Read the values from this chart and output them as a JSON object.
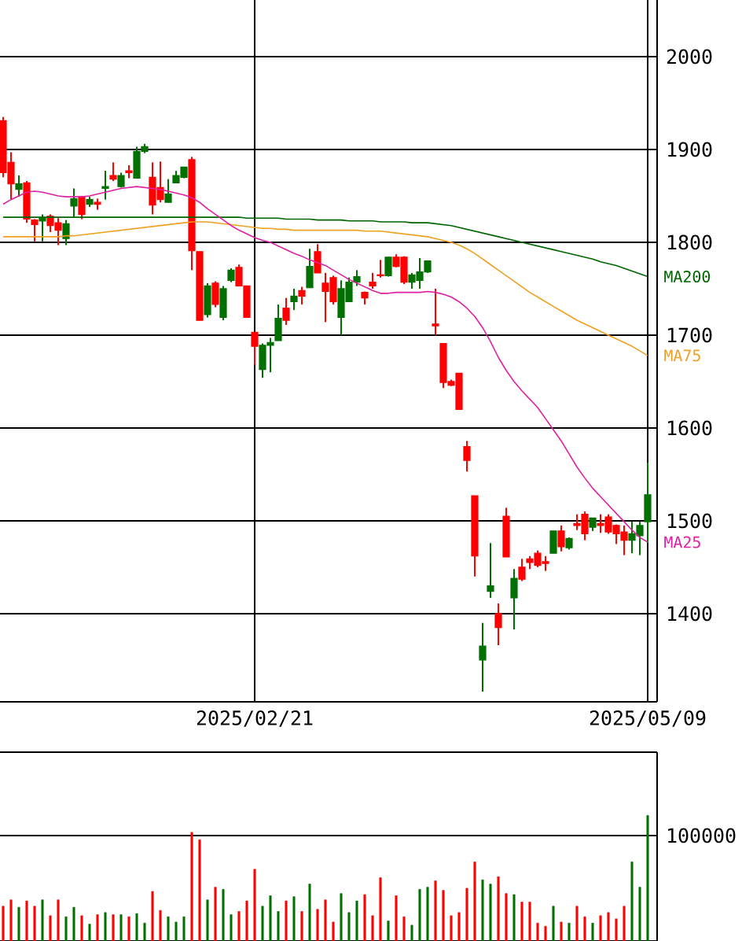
{
  "chart_data": [
    {
      "type": "candlestick",
      "categories": [
        null,
        null,
        null,
        null,
        null,
        null,
        null,
        null,
        null,
        null,
        null,
        null,
        null,
        null,
        null,
        null,
        null,
        null,
        null,
        null,
        null,
        null,
        null,
        null,
        null,
        null,
        null,
        null,
        null,
        null,
        null,
        null,
        "2025/02/21",
        null,
        null,
        null,
        null,
        null,
        null,
        null,
        null,
        null,
        null,
        null,
        null,
        null,
        null,
        null,
        null,
        null,
        null,
        null,
        null,
        null,
        null,
        null,
        null,
        null,
        null,
        null,
        null,
        null,
        null,
        null,
        null,
        null,
        null,
        null,
        null,
        null,
        null,
        null,
        null,
        null,
        null,
        null,
        null,
        null,
        null,
        null,
        null,
        null,
        "2025/05/09"
      ],
      "ohlc": [
        [
          1931,
          1935,
          1870,
          1875
        ],
        [
          1886,
          1897,
          1846,
          1863
        ],
        [
          1857,
          1872,
          1849,
          1863
        ],
        [
          1864,
          1866,
          1821,
          1825
        ],
        [
          1824,
          1825,
          1801,
          1819
        ],
        [
          1823,
          1830,
          1801,
          1826
        ],
        [
          1828,
          1830,
          1811,
          1818
        ],
        [
          1821,
          1826,
          1797,
          1813
        ],
        [
          1804,
          1824,
          1797,
          1820
        ],
        [
          1839,
          1858,
          1827,
          1847
        ],
        [
          1849,
          1850,
          1825,
          1830
        ],
        [
          1841,
          1849,
          1838,
          1846
        ],
        [
          1843,
          1847,
          1835,
          1841
        ],
        [
          1858,
          1877,
          1846,
          1860
        ],
        [
          1872,
          1886,
          1866,
          1868
        ],
        [
          1860,
          1875,
          1859,
          1872
        ],
        [
          1877,
          1883,
          1869,
          1875
        ],
        [
          1869,
          1903,
          1869,
          1898
        ],
        [
          1898,
          1906,
          1896,
          1903
        ],
        [
          1870,
          1886,
          1830,
          1840
        ],
        [
          1859,
          1887,
          1843,
          1846
        ],
        [
          1843,
          1868,
          1843,
          1852
        ],
        [
          1864,
          1877,
          1864,
          1872
        ],
        [
          1870,
          1881,
          1869,
          1881
        ],
        [
          1889,
          1892,
          1770,
          1791
        ],
        [
          1790,
          1790,
          1716,
          1716
        ],
        [
          1722,
          1756,
          1719,
          1753
        ],
        [
          1756,
          1758,
          1730,
          1733
        ],
        [
          1719,
          1753,
          1716,
          1750
        ],
        [
          1759,
          1772,
          1757,
          1770
        ],
        [
          1773,
          1776,
          1753,
          1753
        ],
        [
          1753,
          1753,
          1719,
          1719
        ],
        [
          1703,
          1703,
          1668,
          1688
        ],
        [
          1663,
          1691,
          1654,
          1689
        ],
        [
          1689,
          1697,
          1660,
          1692
        ],
        [
          1694,
          1733,
          1694,
          1718
        ],
        [
          1729,
          1740,
          1711,
          1716
        ],
        [
          1736,
          1750,
          1727,
          1742
        ],
        [
          1748,
          1752,
          1733,
          1742
        ],
        [
          1751,
          1793,
          1751,
          1774
        ],
        [
          1790,
          1798,
          1767,
          1767
        ],
        [
          1756,
          1767,
          1714,
          1747
        ],
        [
          1762,
          1764,
          1733,
          1736
        ],
        [
          1719,
          1759,
          1700,
          1750
        ],
        [
          1736,
          1762,
          1736,
          1757
        ],
        [
          1757,
          1770,
          1753,
          1763
        ],
        [
          1746,
          1747,
          1733,
          1740
        ],
        [
          1757,
          1767,
          1750,
          1753
        ],
        [
          1765,
          1781,
          1762,
          1764
        ],
        [
          1764,
          1784,
          1763,
          1784
        ],
        [
          1784,
          1787,
          1773,
          1774
        ],
        [
          1784,
          1785,
          1755,
          1757
        ],
        [
          1757,
          1767,
          1750,
          1765
        ],
        [
          1759,
          1783,
          1750,
          1768
        ],
        [
          1768,
          1780,
          1767,
          1780
        ],
        [
          1712,
          1750,
          1700,
          1710
        ],
        [
          1691,
          1691,
          1643,
          1649
        ],
        [
          1650,
          1652,
          1645,
          1646
        ],
        [
          1659,
          1659,
          1620,
          1620
        ],
        [
          1580,
          1586,
          1553,
          1565
        ],
        [
          1527,
          1527,
          1440,
          1462
        ],
        [
          1350,
          1390,
          1316,
          1365
        ],
        [
          1424,
          1476,
          1417,
          1430
        ],
        [
          1400,
          1411,
          1366,
          1385
        ],
        [
          1505,
          1514,
          1461,
          1461
        ],
        [
          1417,
          1448,
          1383,
          1438
        ],
        [
          1450,
          1459,
          1435,
          1437
        ],
        [
          1459,
          1462,
          1448,
          1455
        ],
        [
          1465,
          1468,
          1450,
          1452
        ],
        [
          1456,
          1462,
          1446,
          1454
        ],
        [
          1465,
          1489,
          1465,
          1489
        ],
        [
          1489,
          1495,
          1467,
          1472
        ],
        [
          1471,
          1482,
          1469,
          1481
        ],
        [
          1497,
          1507,
          1490,
          1495
        ],
        [
          1507,
          1510,
          1479,
          1486
        ],
        [
          1493,
          1503,
          1489,
          1503
        ],
        [
          1497,
          1507,
          1487,
          1495
        ],
        [
          1504,
          1507,
          1486,
          1488
        ],
        [
          1495,
          1496,
          1475,
          1486
        ],
        [
          1488,
          1495,
          1463,
          1479
        ],
        [
          1479,
          1499,
          1465,
          1486
        ],
        [
          1484,
          1499,
          1463,
          1495
        ],
        [
          1499,
          1563,
          1476,
          1528
        ]
      ],
      "colors": [
        "#ff0000",
        "#ff0000",
        "#007000",
        "#ff0000",
        "#ff0000",
        "#007000",
        "#ff0000",
        "#ff0000",
        "#007000",
        "#007000",
        "#ff0000",
        "#007000",
        "#ff0000",
        "#007000",
        "#ff0000",
        "#007000",
        "#ff0000",
        "#007000",
        "#007000",
        "#ff0000",
        "#ff0000",
        "#007000",
        "#007000",
        "#007000",
        "#ff0000",
        "#ff0000",
        "#007000",
        "#ff0000",
        "#007000",
        "#007000",
        "#ff0000",
        "#ff0000",
        "#ff0000",
        "#007000",
        "#007000",
        "#007000",
        "#ff0000",
        "#007000",
        "#ff0000",
        "#007000",
        "#ff0000",
        "#ff0000",
        "#ff0000",
        "#007000",
        "#007000",
        "#007000",
        "#ff0000",
        "#ff0000",
        "#ff0000",
        "#007000",
        "#ff0000",
        "#ff0000",
        "#007000",
        "#007000",
        "#007000",
        "#ff0000",
        "#ff0000",
        "#ff0000",
        "#ff0000",
        "#ff0000",
        "#ff0000",
        "#007000",
        "#007000",
        "#ff0000",
        "#ff0000",
        "#007000",
        "#ff0000",
        "#ff0000",
        "#ff0000",
        "#ff0000",
        "#007000",
        "#ff0000",
        "#007000",
        "#ff0000",
        "#ff0000",
        "#007000",
        "#ff0000",
        "#ff0000",
        "#ff0000",
        "#ff0000",
        "#007000",
        "#007000",
        "#007000"
      ],
      "series": [
        {
          "type": "line",
          "name": "MA200",
          "color": "#006400",
          "values": [
            1827,
            1827,
            1827,
            1827,
            1827,
            1827,
            1827,
            1827,
            1827,
            1827,
            1827,
            1827,
            1827,
            1827,
            1827,
            1827,
            1827,
            1827,
            1827,
            1827,
            1827,
            1827,
            1827,
            1827,
            1827,
            1827,
            1827,
            1827,
            1827,
            1827,
            1827,
            1826,
            1826,
            1826,
            1826,
            1826,
            1825,
            1825,
            1825,
            1825,
            1824,
            1824,
            1824,
            1824,
            1823,
            1823,
            1823,
            1823,
            1822,
            1822,
            1822,
            1822,
            1821,
            1821,
            1821,
            1820,
            1819,
            1818,
            1816,
            1814,
            1812,
            1810,
            1808,
            1806,
            1804,
            1802,
            1800,
            1798,
            1796,
            1794,
            1792,
            1790,
            1788,
            1786,
            1784,
            1782,
            1779,
            1777,
            1775,
            1772,
            1769,
            1766,
            1763
          ]
        },
        {
          "type": "line",
          "name": "MA75",
          "color": "#f0a020",
          "values": [
            1806,
            1806,
            1806,
            1806,
            1806,
            1806,
            1806,
            1806,
            1807,
            1807,
            1808,
            1809,
            1810,
            1811,
            1812,
            1813,
            1814,
            1815,
            1816,
            1817,
            1818,
            1819,
            1820,
            1821,
            1822,
            1822,
            1822,
            1821,
            1820,
            1819,
            1818,
            1817,
            1816,
            1815,
            1815,
            1814,
            1814,
            1813,
            1813,
            1813,
            1813,
            1813,
            1813,
            1813,
            1813,
            1813,
            1812,
            1812,
            1812,
            1811,
            1810,
            1809,
            1808,
            1807,
            1806,
            1804,
            1802,
            1800,
            1797,
            1793,
            1788,
            1782,
            1776,
            1770,
            1764,
            1758,
            1752,
            1746,
            1741,
            1736,
            1731,
            1726,
            1721,
            1716,
            1712,
            1708,
            1704,
            1700,
            1696,
            1692,
            1688,
            1683,
            1678
          ]
        },
        {
          "type": "line",
          "name": "MA25",
          "color": "#e020a0",
          "values": [
            1841,
            1846,
            1850,
            1854,
            1855,
            1854,
            1852,
            1850,
            1849,
            1849,
            1849,
            1850,
            1852,
            1854,
            1856,
            1858,
            1859,
            1860,
            1859,
            1858,
            1857,
            1855,
            1853,
            1851,
            1848,
            1843,
            1836,
            1830,
            1824,
            1818,
            1813,
            1809,
            1805,
            1802,
            1800,
            1796,
            1792,
            1788,
            1785,
            1781,
            1778,
            1775,
            1770,
            1765,
            1760,
            1756,
            1752,
            1748,
            1745,
            1745,
            1746,
            1746,
            1746,
            1746,
            1747,
            1746,
            1744,
            1741,
            1736,
            1729,
            1720,
            1708,
            1693,
            1676,
            1662,
            1650,
            1640,
            1631,
            1622,
            1610,
            1598,
            1586,
            1572,
            1558,
            1546,
            1535,
            1526,
            1517,
            1508,
            1499,
            1490,
            1482,
            1477
          ]
        }
      ],
      "ylim": [
        1305,
        2061
      ],
      "yticks": [
        1400,
        1500,
        1600,
        1700,
        1800,
        1900,
        2000
      ],
      "grid": true
    },
    {
      "type": "bar",
      "categories": [
        null,
        null,
        null,
        null,
        null,
        null,
        null,
        null,
        null,
        null,
        null,
        null,
        null,
        null,
        null,
        null,
        null,
        null,
        null,
        null,
        null,
        null,
        null,
        null,
        null,
        null,
        null,
        null,
        null,
        null,
        null,
        null,
        null,
        null,
        null,
        null,
        null,
        null,
        null,
        null,
        null,
        null,
        null,
        null,
        null,
        null,
        null,
        null,
        null,
        null,
        null,
        null,
        null,
        null,
        null,
        null,
        null,
        null,
        null,
        null,
        null,
        null,
        null,
        null,
        null,
        null,
        null,
        null,
        null,
        null,
        null,
        null,
        null,
        null,
        null,
        null,
        null,
        null,
        null,
        null,
        null,
        null,
        null
      ],
      "values": [
        33000,
        39000,
        32000,
        38000,
        33000,
        39000,
        24000,
        39000,
        23000,
        32000,
        24000,
        16000,
        25000,
        27000,
        25000,
        25000,
        23000,
        26000,
        17000,
        47000,
        29000,
        23000,
        18000,
        23000,
        103000,
        96000,
        39000,
        51000,
        49000,
        25000,
        28000,
        38000,
        68000,
        33000,
        43000,
        28000,
        38000,
        42000,
        28000,
        54000,
        30000,
        39000,
        18000,
        45000,
        27000,
        38000,
        44000,
        24000,
        60000,
        19000,
        43000,
        23000,
        15000,
        49000,
        51000,
        57000,
        48000,
        24000,
        27000,
        50000,
        75000,
        58000,
        54000,
        61000,
        45000,
        44000,
        37000,
        37000,
        17000,
        14000,
        33000,
        18000,
        17000,
        33000,
        23000,
        17000,
        24000,
        27000,
        21000,
        33000,
        75000,
        51000,
        119000
      ],
      "ylim": [
        0,
        179000
      ],
      "yticks": [
        {
          "value": 0,
          "label": null
        },
        100000
      ],
      "grid": "y",
      "colors": [
        "#ff0000",
        "#ff0000",
        "#007000",
        "#ff0000",
        "#ff0000",
        "#007000",
        "#ff0000",
        "#ff0000",
        "#007000",
        "#007000",
        "#ff0000",
        "#007000",
        "#ff0000",
        "#007000",
        "#ff0000",
        "#007000",
        "#ff0000",
        "#007000",
        "#007000",
        "#ff0000",
        "#ff0000",
        "#007000",
        "#007000",
        "#007000",
        "#ff0000",
        "#ff0000",
        "#007000",
        "#ff0000",
        "#007000",
        "#007000",
        "#ff0000",
        "#ff0000",
        "#ff0000",
        "#007000",
        "#007000",
        "#007000",
        "#ff0000",
        "#007000",
        "#ff0000",
        "#007000",
        "#ff0000",
        "#ff0000",
        "#ff0000",
        "#007000",
        "#007000",
        "#007000",
        "#ff0000",
        "#ff0000",
        "#ff0000",
        "#007000",
        "#ff0000",
        "#ff0000",
        "#007000",
        "#007000",
        "#007000",
        "#ff0000",
        "#ff0000",
        "#ff0000",
        "#ff0000",
        "#ff0000",
        "#ff0000",
        "#007000",
        "#007000",
        "#ff0000",
        "#ff0000",
        "#007000",
        "#ff0000",
        "#ff0000",
        "#ff0000",
        "#ff0000",
        "#007000",
        "#ff0000",
        "#007000",
        "#ff0000",
        "#ff0000",
        "#007000",
        "#ff0000",
        "#ff0000",
        "#ff0000",
        "#ff0000",
        "#007000",
        "#007000",
        "#007000"
      ],
      "tick_labels": "y"
    }
  ]
}
